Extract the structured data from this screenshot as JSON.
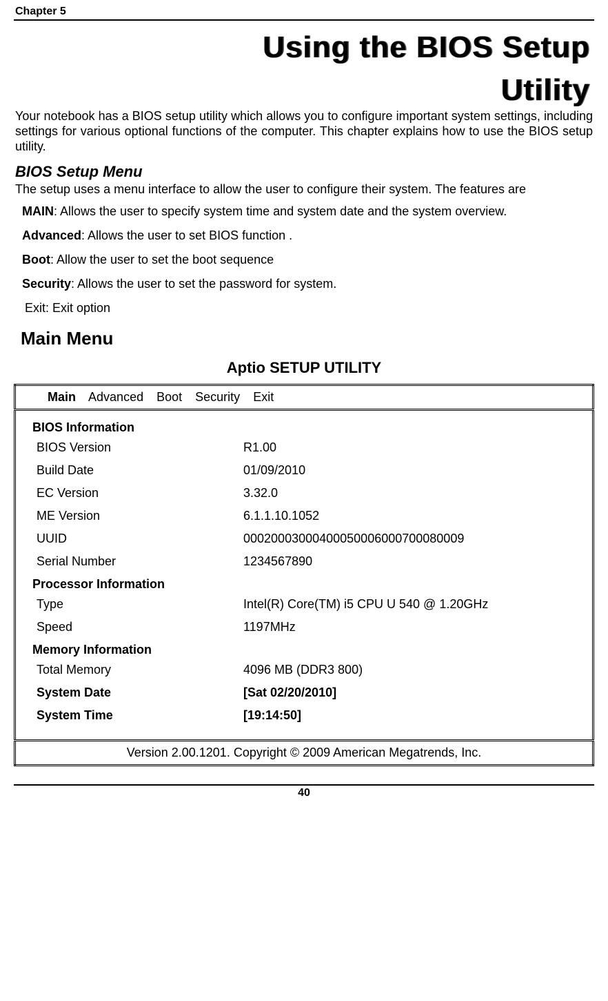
{
  "header": {
    "chapter": "Chapter 5"
  },
  "title": {
    "line1": "Using the BIOS Setup",
    "line2": "Utility"
  },
  "intro": "Your notebook has a BIOS setup utility which allows you to configure important system settings, including settings for various optional functions of the computer. This chapter explains how to use the BIOS setup utility.",
  "biosSetupMenu": {
    "heading": "BIOS Setup Menu",
    "desc": "The setup uses a menu interface to allow the user to configure their system. The features are",
    "items": [
      {
        "key": "MAIN",
        "text": ": Allows the user to specify system time and system date and the system overview."
      },
      {
        "key": "Advanced",
        "text": ": Allows the user to set BIOS function ."
      },
      {
        "key": "Boot",
        "text": ": Allow the user to set the boot sequence"
      },
      {
        "key": "Security",
        "text": ": Allows the user to set the password for system."
      }
    ],
    "exit": "Exit: Exit option"
  },
  "mainMenu": {
    "heading": "Main Menu",
    "aptioTitle": "Aptio SETUP UTILITY",
    "tabs": [
      "Main",
      "Advanced",
      "Boot",
      "Security",
      "Exit"
    ],
    "selectedTab": "Main",
    "sections": {
      "bios": {
        "heading": "BIOS Information",
        "rows": [
          {
            "label": "BIOS Version",
            "value": "R1.00"
          },
          {
            "label": "Build Date",
            "value": "01/09/2010"
          },
          {
            "label": "EC Version",
            "value": "3.32.0"
          },
          {
            "label": "ME Version",
            "value": "6.1.1.10.1052"
          },
          {
            "label": "UUID",
            "value": "00020003000400050006000700080009"
          },
          {
            "label": "Serial Number",
            "value": "1234567890"
          }
        ]
      },
      "processor": {
        "heading": "Processor Information",
        "rows": [
          {
            "label": "Type",
            "value": "Intel(R) Core(TM) i5 CPU U 540 @ 1.20GHz"
          },
          {
            "label": "Speed",
            "value": "1197MHz"
          }
        ]
      },
      "memory": {
        "heading": "Memory Information",
        "rows": [
          {
            "label": "Total Memory",
            "value": "4096 MB (DDR3 800)"
          }
        ]
      },
      "systemBold": [
        {
          "label": "System Date",
          "value": "[Sat 02/20/2010]"
        },
        {
          "label": "System Time",
          "value": "[19:14:50]"
        }
      ]
    },
    "footer": "Version 2.00.1201. Copyright © 2009 American Megatrends, Inc."
  },
  "pageNumber": "40"
}
